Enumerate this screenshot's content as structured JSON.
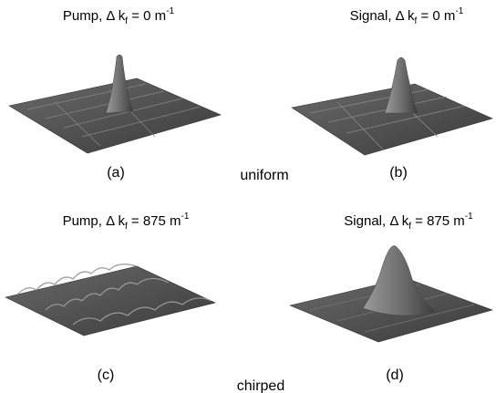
{
  "panels": [
    {
      "title": {
        "main": "Pump, Δ k",
        "sub": "f",
        "rest": " = 0 m",
        "sup": "-1"
      },
      "label": "(a)"
    },
    {
      "title": {
        "main": "Signal, Δ k",
        "sub": "f",
        "rest": " = 0 m",
        "sup": "-1"
      },
      "label": "(b)"
    },
    {
      "title": {
        "main": "Pump, Δ k",
        "sub": "f",
        "rest": " = 875 m",
        "sup": "-1"
      },
      "label": "(c)"
    },
    {
      "title": {
        "main": "Signal, Δ k",
        "sub": "f",
        "rest": " = 875 m",
        "sup": "-1"
      },
      "label": "(d)"
    }
  ],
  "row_labels": [
    "uniform",
    "chirped"
  ]
}
